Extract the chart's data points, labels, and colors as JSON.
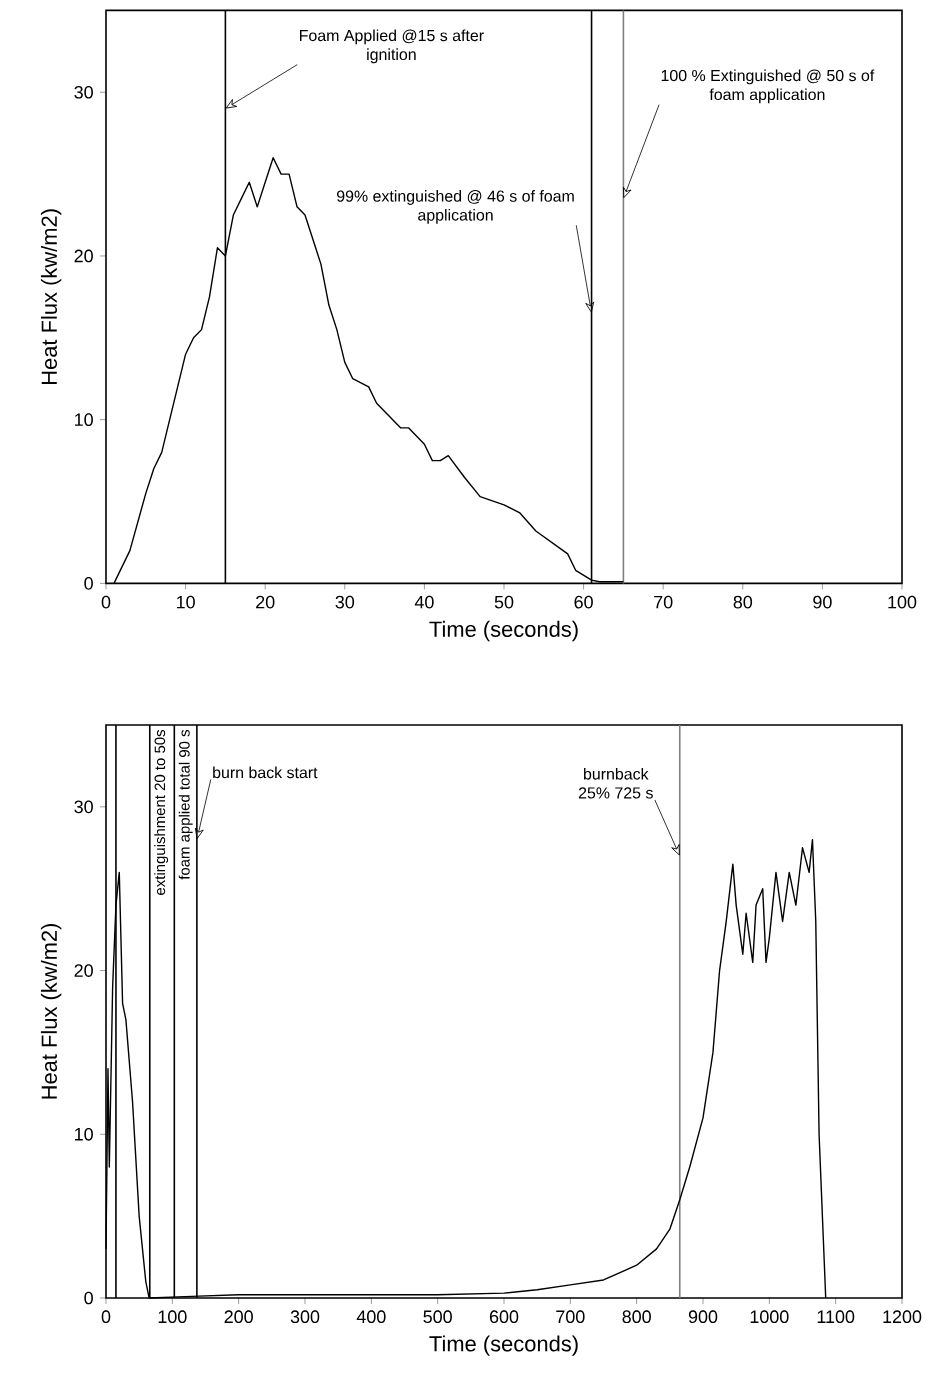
{
  "chart_data": [
    {
      "type": "line",
      "xlabel": "Time (seconds)",
      "ylabel": "Heat Flux (kw/m2)",
      "xlim": [
        0,
        100
      ],
      "ylim": [
        0,
        35
      ],
      "xticks": [
        0,
        10,
        20,
        30,
        40,
        50,
        60,
        70,
        80,
        90,
        100
      ],
      "yticks": [
        0,
        10,
        20,
        30
      ],
      "series": [
        {
          "color": "#000000",
          "x": [
            1,
            3,
            5,
            6,
            7,
            8,
            9,
            10,
            11,
            12,
            13,
            14,
            15,
            16,
            17,
            18,
            19,
            20,
            21,
            22,
            23,
            24,
            25,
            26,
            27,
            28,
            29,
            30,
            31,
            33,
            34,
            35,
            37,
            38,
            40,
            41,
            42,
            43,
            45,
            47,
            50,
            52,
            54,
            56,
            58,
            59,
            61,
            62,
            65
          ],
          "values": [
            0,
            2,
            5.5,
            7,
            8,
            10,
            12,
            14,
            15,
            15.5,
            17.5,
            20.5,
            20,
            22.5,
            23.5,
            24.5,
            23,
            24.5,
            26,
            25,
            25,
            23,
            22.5,
            21,
            19.5,
            17,
            15.5,
            13.5,
            12.5,
            12,
            11,
            10.5,
            9.5,
            9.5,
            8.5,
            7.5,
            7.5,
            7.8,
            6.5,
            5.3,
            4.8,
            4.3,
            3.2,
            2.5,
            1.8,
            0.8,
            0.2,
            0.1,
            0.1
          ]
        }
      ],
      "ref_lines": [
        {
          "axis": "x",
          "value": 15,
          "color": "#000000"
        },
        {
          "axis": "x",
          "value": 61,
          "color": "#000000"
        },
        {
          "axis": "x",
          "value": 65,
          "color": "#808080"
        }
      ],
      "annotations": [
        {
          "text": "Foam Applied @15 s after ignition",
          "x": 15,
          "y": 29
        },
        {
          "text": "99% extinguished @ 46 s of foam application",
          "x": 61,
          "y": 16.5
        },
        {
          "text": "100 % Extinguished @ 50 s of foam application",
          "x": 65,
          "y": 23.5
        }
      ]
    },
    {
      "type": "line",
      "xlabel": "Time (seconds)",
      "ylabel": "Heat Flux (kw/m2)",
      "xlim": [
        0,
        1200
      ],
      "ylim": [
        0,
        35
      ],
      "xticks": [
        0,
        100,
        200,
        300,
        400,
        500,
        600,
        700,
        800,
        900,
        1000,
        1100,
        1200
      ],
      "yticks": [
        0,
        10,
        20,
        30
      ],
      "series": [
        {
          "color": "#000000",
          "x": [
            0,
            3,
            5,
            10,
            15,
            20,
            25,
            30,
            40,
            50,
            60,
            65,
            130,
            200,
            300,
            400,
            500,
            600,
            650,
            700,
            750,
            800,
            830,
            850,
            865,
            880,
            900,
            915,
            925,
            935,
            945,
            950,
            960,
            965,
            975,
            980,
            990,
            995,
            1000,
            1010,
            1020,
            1030,
            1040,
            1050,
            1060,
            1065,
            1070,
            1075,
            1085
          ],
          "values": [
            3,
            14,
            8,
            19,
            24,
            26,
            18,
            17,
            12,
            5,
            1,
            0,
            0.1,
            0.2,
            0.2,
            0.2,
            0.2,
            0.3,
            0.5,
            0.8,
            1.1,
            2,
            3,
            4.2,
            6,
            8,
            11,
            15,
            20,
            23,
            26.5,
            24,
            21,
            23.5,
            20.5,
            24,
            25,
            20.5,
            22,
            26,
            23,
            26,
            24,
            27.5,
            26,
            28,
            23,
            10,
            0
          ]
        }
      ],
      "ref_lines": [
        {
          "axis": "x",
          "value": 15,
          "color": "#000000"
        },
        {
          "axis": "x",
          "value": 66,
          "color": "#000000",
          "label": "extinguishment 20 to 50s"
        },
        {
          "axis": "x",
          "value": 103,
          "color": "#000000",
          "label": "foam applied total 90 s"
        },
        {
          "axis": "x",
          "value": 137,
          "color": "#000000"
        },
        {
          "axis": "x",
          "value": 865,
          "color": "#808080"
        }
      ],
      "annotations": [
        {
          "text": "burn back start",
          "x": 137,
          "y": 28
        },
        {
          "text": "burnback 25% 725 s",
          "x": 865,
          "y": 27
        }
      ]
    }
  ]
}
